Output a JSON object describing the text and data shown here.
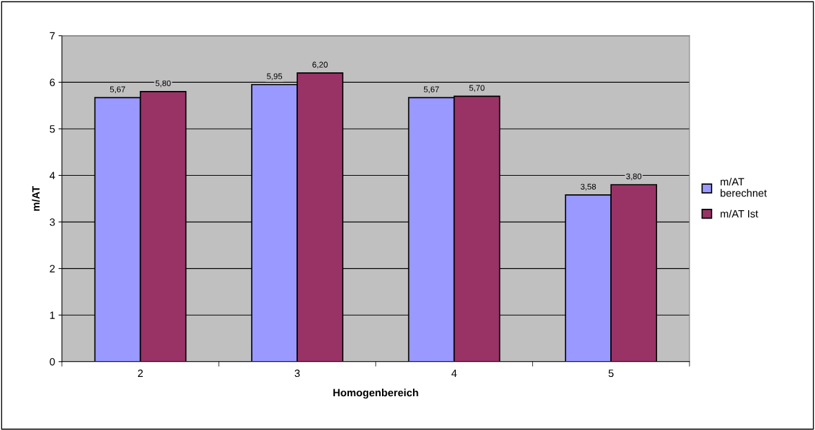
{
  "chart_data": {
    "type": "bar",
    "xlabel": "Homogenbereich",
    "ylabel": "m/AT",
    "categories": [
      "2",
      "3",
      "4",
      "5"
    ],
    "series": [
      {
        "name": "m/AT berechnet",
        "color": "#9999ff",
        "values": [
          5.67,
          5.95,
          5.67,
          3.58
        ],
        "value_labels": [
          "5,67",
          "5,95",
          "5,67",
          "3,58"
        ]
      },
      {
        "name": "m/AT Ist",
        "color": "#993366",
        "values": [
          5.8,
          6.2,
          5.7,
          3.8
        ],
        "value_labels": [
          "5,80",
          "6,20",
          "5,70",
          "3,80"
        ]
      }
    ],
    "ylim": [
      0,
      7
    ],
    "yticks": [
      0,
      1,
      2,
      3,
      4,
      5,
      6,
      7
    ],
    "grid": "y",
    "legend": "right"
  }
}
